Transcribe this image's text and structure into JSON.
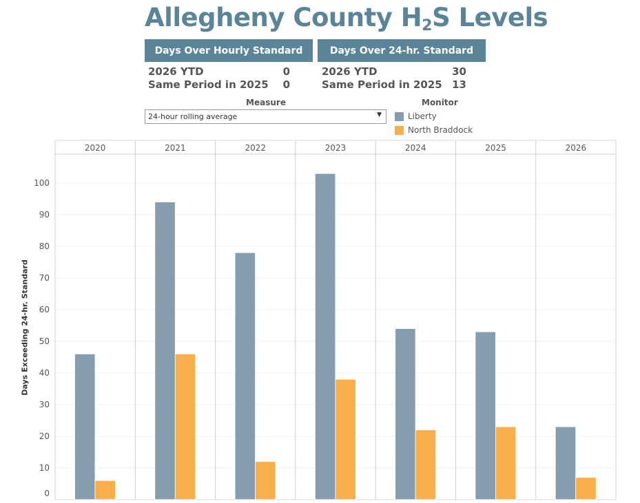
{
  "title_prefix": "Allegheny County H",
  "title_sub": "2",
  "title_suffix": "S Levels",
  "stats": {
    "hourly": {
      "header": "Days Over Hourly Standard",
      "rows": [
        {
          "label": "2026 YTD",
          "value": "0"
        },
        {
          "label": "Same Period in 2025",
          "value": "0"
        }
      ]
    },
    "daily": {
      "header": "Days Over 24-hr. Standard",
      "rows": [
        {
          "label": "2026 YTD",
          "value": "30"
        },
        {
          "label": "Same Period in 2025",
          "value": "13"
        }
      ]
    }
  },
  "measure": {
    "label": "Measure",
    "selected": "24-hour rolling average"
  },
  "legend": {
    "title": "Monitor",
    "items": [
      {
        "label": "Liberty",
        "color": "#869db0"
      },
      {
        "label": "North Braddock",
        "color": "#f9ae4c"
      }
    ]
  },
  "chart_data": {
    "type": "bar",
    "title": "",
    "xlabel": "",
    "ylabel": "Days Exceeding 24-hr. Standard",
    "categories": [
      "2020",
      "2021",
      "2022",
      "2023",
      "2024",
      "2025",
      "2026"
    ],
    "series": [
      {
        "name": "Liberty",
        "color": "#869db0",
        "values": [
          46,
          94,
          78,
          103,
          54,
          53,
          23
        ]
      },
      {
        "name": "North Braddock",
        "color": "#f9ae4c",
        "values": [
          6,
          46,
          12,
          38,
          22,
          23,
          7
        ]
      }
    ],
    "yticks": [
      0,
      10,
      20,
      30,
      40,
      50,
      60,
      70,
      80,
      90,
      100
    ],
    "ylim": [
      0,
      110
    ],
    "grid": true,
    "legend_position": "top-right"
  }
}
